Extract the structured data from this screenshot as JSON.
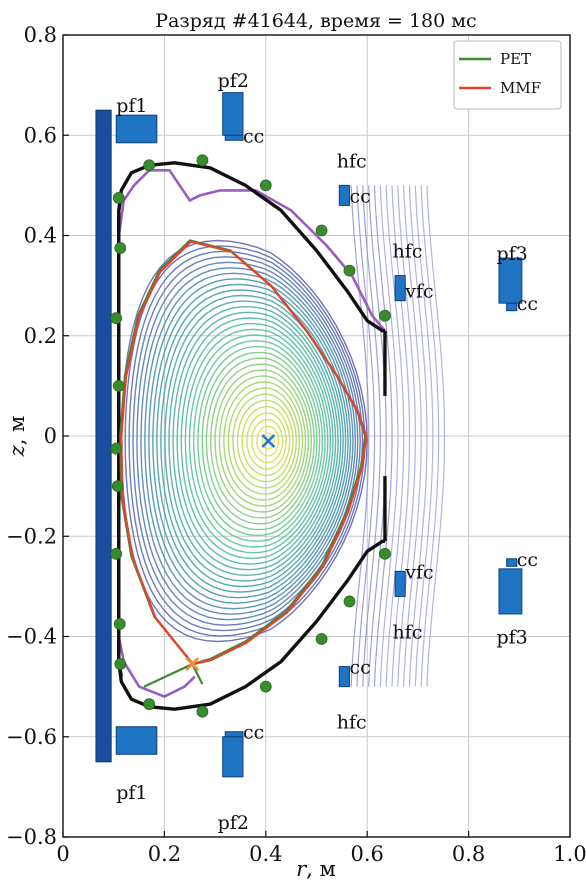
{
  "chart_data": {
    "type": "line",
    "title": "Разряд #41644, время = 180 мс",
    "xlabel_var": "r",
    "xlabel_unit": ", м",
    "ylabel_var": "z",
    "ylabel_unit": ", м",
    "xlim": [
      0,
      1.0
    ],
    "ylim": [
      -0.8,
      0.8
    ],
    "xticks": [
      0,
      0.2,
      0.4,
      0.6,
      0.8,
      1.0
    ],
    "xtick_labels": [
      "0",
      "0.2",
      "0.4",
      "0.6",
      "0.8",
      "1.0"
    ],
    "yticks": [
      -0.8,
      -0.6,
      -0.4,
      -0.2,
      0,
      0.2,
      0.4,
      0.6,
      0.8
    ],
    "ytick_labels": [
      "−0.8",
      "−0.6",
      "−0.4",
      "−0.2",
      "0",
      "0.2",
      "0.4",
      "0.6",
      "0.8"
    ],
    "grid": true,
    "legend": {
      "placement": "top-right",
      "entries": [
        {
          "name": "РЕТ",
          "color": "#3a8a2e"
        },
        {
          "name": "MMF",
          "color": "#e0452e"
        }
      ]
    },
    "magnetic_axis": {
      "r": 0.405,
      "z": -0.01,
      "color": "#2a78c8"
    },
    "x_point": {
      "r": 0.255,
      "z": -0.455,
      "color": "#f09030"
    },
    "series": [
      {
        "name": "РЕТ",
        "color": "#3a8a2e",
        "r": [
          0.256,
          0.18,
          0.135,
          0.115,
          0.113,
          0.122,
          0.148,
          0.19,
          0.25,
          0.33,
          0.41,
          0.48,
          0.54,
          0.58,
          0.596,
          0.588,
          0.56,
          0.51,
          0.44,
          0.36,
          0.29,
          0.256
        ],
        "z": [
          -0.455,
          -0.36,
          -0.24,
          -0.12,
          0.0,
          0.12,
          0.24,
          0.33,
          0.39,
          0.37,
          0.3,
          0.21,
          0.12,
          0.05,
          0.0,
          -0.06,
          -0.15,
          -0.26,
          -0.35,
          -0.41,
          -0.445,
          -0.455
        ]
      },
      {
        "name": "MMF",
        "color": "#e0452e",
        "r": [
          0.256,
          0.182,
          0.137,
          0.117,
          0.115,
          0.124,
          0.15,
          0.192,
          0.252,
          0.332,
          0.412,
          0.482,
          0.542,
          0.582,
          0.598,
          0.59,
          0.562,
          0.512,
          0.442,
          0.362,
          0.292,
          0.256
        ],
        "z": [
          -0.455,
          -0.362,
          -0.242,
          -0.122,
          0.0,
          0.118,
          0.238,
          0.328,
          0.388,
          0.368,
          0.298,
          0.208,
          0.118,
          0.048,
          0.0,
          -0.062,
          -0.152,
          -0.262,
          -0.352,
          -0.412,
          -0.447,
          -0.455
        ]
      }
    ],
    "vessel_wall": {
      "color": "#111111",
      "r": [
        0.115,
        0.11,
        0.11,
        0.115,
        0.135,
        0.17,
        0.22,
        0.29,
        0.36,
        0.43,
        0.5,
        0.56,
        0.6,
        0.63,
        0.635
      ],
      "z": [
        0.48,
        0.45,
        -0.45,
        -0.49,
        -0.525,
        -0.54,
        -0.545,
        -0.535,
        -0.5,
        -0.45,
        -0.37,
        -0.29,
        -0.23,
        -0.21,
        -0.21
      ]
    },
    "limiter_contour": {
      "color": "#9a5cc0",
      "r": [
        0.635,
        0.61,
        0.59,
        0.57,
        0.52,
        0.45,
        0.38,
        0.31,
        0.27,
        0.25,
        0.23,
        0.21,
        0.17,
        0.14,
        0.12,
        0.11,
        0.11,
        0.12,
        0.15,
        0.2,
        0.24,
        0.26
      ],
      "z": [
        0.21,
        0.24,
        0.28,
        0.32,
        0.38,
        0.45,
        0.49,
        0.49,
        0.48,
        0.47,
        0.5,
        0.53,
        0.53,
        0.5,
        0.47,
        0.4,
        -0.4,
        -0.45,
        -0.5,
        -0.52,
        -0.5,
        -0.48
      ]
    },
    "diagnostic_points": {
      "color": "#3a8a2e",
      "r": [
        0.11,
        0.113,
        0.105,
        0.11,
        0.105,
        0.108,
        0.105,
        0.112,
        0.113,
        0.17,
        0.275,
        0.4,
        0.51,
        0.565,
        0.635,
        0.17,
        0.275,
        0.4,
        0.51,
        0.565,
        0.635
      ],
      "z": [
        0.475,
        0.375,
        0.235,
        0.1,
        -0.025,
        -0.1,
        -0.235,
        -0.375,
        -0.455,
        0.54,
        0.55,
        0.5,
        0.41,
        0.33,
        0.24,
        -0.535,
        -0.55,
        -0.5,
        -0.405,
        -0.33,
        -0.235
      ]
    },
    "central_solenoid": {
      "r": [
        0.065,
        0.095
      ],
      "z": [
        -0.65,
        0.65
      ],
      "color": "#1a4fa0"
    },
    "coils": [
      {
        "label": "pf1",
        "r": [
          0.105,
          0.185
        ],
        "z": [
          0.585,
          0.64
        ],
        "label_r": 0.105,
        "label_z": 0.66
      },
      {
        "label": "pf1",
        "r": [
          0.105,
          0.185
        ],
        "z": [
          -0.635,
          -0.58
        ],
        "label_r": 0.105,
        "label_z": -0.71
      },
      {
        "label": "pf2",
        "r": [
          0.315,
          0.355
        ],
        "z": [
          0.6,
          0.685
        ],
        "label_r": 0.305,
        "label_z": 0.71
      },
      {
        "label": "pf2",
        "r": [
          0.315,
          0.355
        ],
        "z": [
          -0.68,
          -0.6
        ],
        "label_r": 0.305,
        "label_z": -0.77
      },
      {
        "label": "pf3",
        "r": [
          0.86,
          0.905
        ],
        "z": [
          0.265,
          0.355
        ],
        "label_r": 0.855,
        "label_z": 0.365
      },
      {
        "label": "pf3",
        "r": [
          0.86,
          0.905
        ],
        "z": [
          -0.355,
          -0.265
        ],
        "label_r": 0.855,
        "label_z": -0.4
      },
      {
        "label": "cc",
        "r": [
          0.32,
          0.355
        ],
        "z": [
          0.59,
          0.6
        ],
        "label_r": 0.355,
        "label_z": 0.6
      },
      {
        "label": "cc",
        "r": [
          0.32,
          0.355
        ],
        "z": [
          -0.6,
          -0.59
        ],
        "label_r": 0.355,
        "label_z": -0.59
      },
      {
        "label": "cc",
        "r": [
          0.545,
          0.565
        ],
        "z": [
          0.46,
          0.5
        ],
        "label_r": 0.565,
        "label_z": 0.48
      },
      {
        "label": "cc",
        "r": [
          0.545,
          0.565
        ],
        "z": [
          -0.5,
          -0.46
        ],
        "label_r": 0.565,
        "label_z": -0.46
      },
      {
        "label": "cc",
        "r": [
          0.875,
          0.895
        ],
        "z": [
          0.25,
          0.265
        ],
        "label_r": 0.895,
        "label_z": 0.265
      },
      {
        "label": "cc",
        "r": [
          0.875,
          0.895
        ],
        "z": [
          -0.26,
          -0.245
        ],
        "label_r": 0.895,
        "label_z": -0.245
      },
      {
        "label": "vfc",
        "r": [
          0.655,
          0.675
        ],
        "z": [
          0.27,
          0.32
        ],
        "label_r": 0.675,
        "label_z": 0.29
      },
      {
        "label": "vfc",
        "r": [
          0.655,
          0.675
        ],
        "z": [
          -0.32,
          -0.27
        ],
        "label_r": 0.675,
        "label_z": -0.27
      }
    ],
    "hfc_labels": [
      {
        "label": "hfc",
        "r": 0.54,
        "z": 0.55
      },
      {
        "label": "hfc",
        "r": 0.65,
        "z": 0.37
      },
      {
        "label": "hfc",
        "r": 0.65,
        "z": -0.39
      },
      {
        "label": "hfc",
        "r": 0.54,
        "z": -0.57
      }
    ],
    "plasma_colors": {
      "low": "#6a6ab8",
      "mid_low": "#4aa0b0",
      "mid": "#5ec6a0",
      "mid_high": "#a8d86a",
      "high": "#f0e84a"
    }
  }
}
